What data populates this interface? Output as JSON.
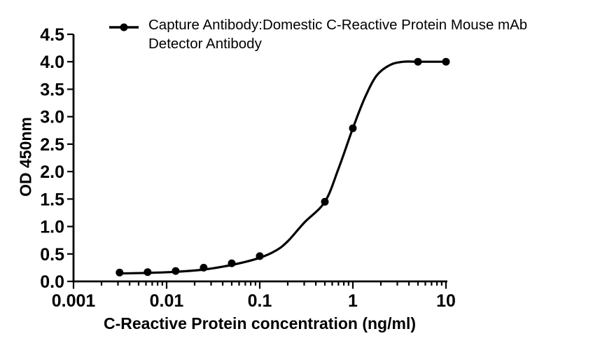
{
  "legend": {
    "line1": "Capture Antibody:Domestic C-Reactive Protein Mouse mAb",
    "line2": "Detector Antibody",
    "marker": "filled-circle-on-line"
  },
  "colors": {
    "foreground": "#000000",
    "background": "#ffffff"
  },
  "chart_data": {
    "type": "line",
    "title": "",
    "xlabel": "C-Reactive Protein concentration (ng/ml)",
    "ylabel": "OD 450nm",
    "x_scale": "log10",
    "xlim": [
      0.001,
      10
    ],
    "ylim": [
      0.0,
      4.5
    ],
    "grid": false,
    "legend_position": "top",
    "x_ticks": [
      {
        "value": 0.001,
        "label": "0.001"
      },
      {
        "value": 0.01,
        "label": "0.01"
      },
      {
        "value": 0.1,
        "label": "0.1"
      },
      {
        "value": 1,
        "label": "1"
      },
      {
        "value": 10,
        "label": "10"
      }
    ],
    "y_ticks": [
      {
        "value": 0.0,
        "label": "0.0"
      },
      {
        "value": 0.5,
        "label": "0.5"
      },
      {
        "value": 1.0,
        "label": "1.0"
      },
      {
        "value": 1.5,
        "label": "1.5"
      },
      {
        "value": 2.0,
        "label": "2.0"
      },
      {
        "value": 2.5,
        "label": "2.5"
      },
      {
        "value": 3.0,
        "label": "3.0"
      },
      {
        "value": 3.5,
        "label": "3.5"
      },
      {
        "value": 4.0,
        "label": "4.0"
      },
      {
        "value": 4.5,
        "label": "4.5"
      }
    ],
    "series": [
      {
        "name": "Capture Antibody:Domestic C-Reactive Protein Mouse mAb Detector Antibody",
        "color": "#000000",
        "marker": "circle",
        "points": [
          {
            "x": 0.003125,
            "y": 0.16
          },
          {
            "x": 0.00625,
            "y": 0.17
          },
          {
            "x": 0.0125,
            "y": 0.19
          },
          {
            "x": 0.025,
            "y": 0.25
          },
          {
            "x": 0.05,
            "y": 0.33
          },
          {
            "x": 0.1,
            "y": 0.46
          },
          {
            "x": 0.5,
            "y": 1.45
          },
          {
            "x": 1,
            "y": 2.79
          },
          {
            "x": 5,
            "y": 4.0
          },
          {
            "x": 10,
            "y": 4.0
          }
        ],
        "fit_curve": [
          [
            0.003125,
            0.145
          ],
          [
            0.00625,
            0.155
          ],
          [
            0.0125,
            0.175
          ],
          [
            0.025,
            0.215
          ],
          [
            0.05,
            0.3
          ],
          [
            0.1,
            0.43
          ],
          [
            0.15,
            0.565
          ],
          [
            0.2,
            0.73
          ],
          [
            0.3,
            1.07
          ],
          [
            0.5,
            1.45
          ],
          [
            0.7,
            2.05
          ],
          [
            1,
            2.79
          ],
          [
            1.35,
            3.35
          ],
          [
            1.8,
            3.75
          ],
          [
            2.5,
            3.94
          ],
          [
            3.5,
            4.0
          ],
          [
            5,
            4.0
          ],
          [
            10,
            4.0
          ]
        ]
      }
    ]
  }
}
